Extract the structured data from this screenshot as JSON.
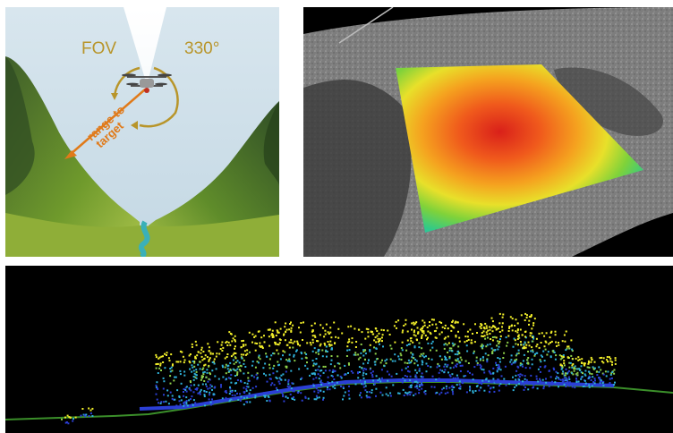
{
  "panel_drone": {
    "fov_label": "FOV",
    "angle_label": "330°",
    "range_label_line1": "range to",
    "range_label_line2": "target",
    "colors": {
      "sky": "#cfe0ea",
      "label": "#b8952a",
      "arrow": "#e07a1a",
      "grass": "#6f9a2c",
      "river": "#3ab0b8"
    }
  },
  "panel_dem": {
    "colors": {
      "background": "#000000",
      "gray_terrain": "#8a8a8a",
      "high": "#d9201a",
      "low": "#2bc6d9"
    }
  },
  "panel_pointcloud": {
    "colors": {
      "background": "#000000",
      "ground": "#2b3fd6",
      "canopy_top": "#f2ef2a",
      "canopy_mid": "#2fb0d8",
      "ground_line": "#3b8f2a"
    }
  }
}
